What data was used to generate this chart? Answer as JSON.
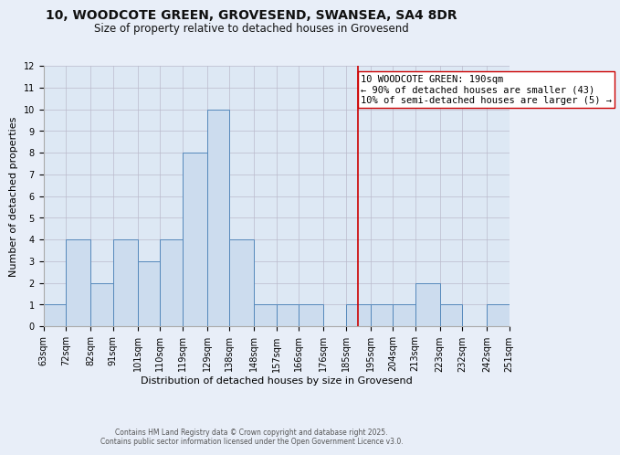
{
  "title_line1": "10, WOODCOTE GREEN, GROVESEND, SWANSEA, SA4 8DR",
  "title_line2": "Size of property relative to detached houses in Grovesend",
  "xlabel": "Distribution of detached houses by size in Grovesend",
  "ylabel": "Number of detached properties",
  "bin_edges": [
    63,
    72,
    82,
    91,
    101,
    110,
    119,
    129,
    138,
    148,
    157,
    166,
    176,
    185,
    195,
    204,
    213,
    223,
    232,
    242,
    251
  ],
  "bar_heights": [
    1,
    4,
    2,
    4,
    3,
    4,
    8,
    10,
    4,
    1,
    1,
    1,
    0,
    1,
    1,
    1,
    2,
    1,
    0,
    1
  ],
  "bar_color": "#ccdcee",
  "bar_edgecolor": "#5588bb",
  "property_line_x": 190,
  "property_line_color": "#cc0000",
  "annotation_text": "10 WOODCOTE GREEN: 190sqm\n← 90% of detached houses are smaller (43)\n10% of semi-detached houses are larger (5) →",
  "annotation_box_edgecolor": "#cc0000",
  "annotation_box_facecolor": "#ffffff",
  "ylim": [
    0,
    12
  ],
  "yticks": [
    0,
    1,
    2,
    3,
    4,
    5,
    6,
    7,
    8,
    9,
    10,
    11,
    12
  ],
  "grid_color": "#bbbbcc",
  "bg_color": "#dde8f4",
  "fig_bg_color": "#e8eef8",
  "footer_line1": "Contains HM Land Registry data © Crown copyright and database right 2025.",
  "footer_line2": "Contains public sector information licensed under the Open Government Licence v3.0.",
  "title_fontsize": 10,
  "subtitle_fontsize": 8.5,
  "axis_label_fontsize": 8,
  "tick_fontsize": 7,
  "annotation_fontsize": 7.5,
  "footer_fontsize": 5.5
}
